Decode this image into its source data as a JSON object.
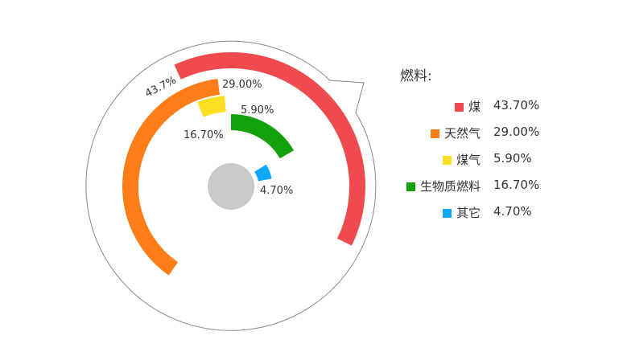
{
  "chart_data": {
    "type": "radial-bar",
    "legend_title": "燃料:",
    "legend_position": "right",
    "categories": [
      "煤",
      "天然气",
      "煤气",
      "生物质燃料",
      "其它"
    ],
    "values": [
      43.7,
      29.0,
      5.9,
      16.7,
      4.7
    ],
    "data_labels": [
      "43.7%",
      "29.00%",
      "5.90%",
      "16.70%",
      "4.70%"
    ],
    "legend_values": [
      "43.70%",
      "29.00%",
      "5.90%",
      "16.70%",
      "4.70%"
    ],
    "colors": [
      "#ef4b4f",
      "#fd7e19",
      "#fde023",
      "#12a10a",
      "#0ea8fb"
    ],
    "center_color": "#c8c9c9"
  }
}
